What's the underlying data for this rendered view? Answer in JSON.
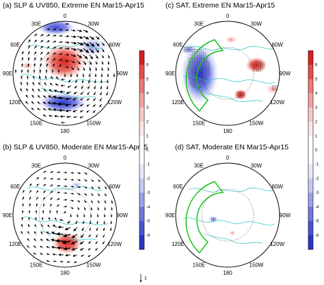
{
  "panels": [
    {
      "key": "a",
      "title": "(a) SLP & UV850, Extreme EN Mar15-Apr15",
      "lon_labels": {
        "top": "0",
        "tl": "30E",
        "tr": "30W",
        "ul": "60E",
        "ur": "60W",
        "l": "90E",
        "r": "90W",
        "ll": "120E",
        "lr": "120W",
        "bl": "150E",
        "br": "150W",
        "bottom": "180"
      }
    },
    {
      "key": "b",
      "title": "(b) SLP & UV850, Moderate EN Mar15-Apr15",
      "lon_labels": {
        "top": "0",
        "tl": "30E",
        "tr": "30W",
        "ul": "60E",
        "ur": "60W",
        "l": "90E",
        "r": "90W",
        "ll": "120E",
        "lr": "120W",
        "bl": "150E",
        "br": "150W",
        "bottom": "180"
      }
    },
    {
      "key": "c",
      "title": "(c) SAT, Extreme EN Mar15-Apr15",
      "lon_labels": {
        "top": "0",
        "tl": "30E",
        "tr": "30W",
        "ul": "60E",
        "ur": "60W",
        "l": "90E",
        "r": "90W",
        "ll": "120E",
        "lr": "120W",
        "bl": "150E",
        "br": "150W",
        "bottom": "180"
      }
    },
    {
      "key": "d",
      "title": "(d) SAT, Moderate EN Mar15-Apr15",
      "lon_labels": {
        "top": "0",
        "tl": "30E",
        "tr": "30W",
        "ul": "60E",
        "ur": "60W",
        "l": "90E",
        "r": "90W",
        "ll": "120E",
        "lr": "120W",
        "bl": "150E",
        "br": "150W",
        "bottom": "180"
      }
    }
  ],
  "colorbar_slp": {
    "ticks": [
      "6",
      "5",
      "4",
      "3",
      "2",
      "1",
      "0",
      "-1",
      "-2",
      "-3",
      "-4",
      "-5",
      "-6"
    ],
    "vector_key": "1"
  },
  "colorbar_sat": {
    "ticks": [
      "6",
      "5",
      "4",
      "3",
      "2",
      "1",
      "0",
      "-1",
      "-2",
      "-3",
      "-4",
      "-5",
      "-6"
    ]
  },
  "colors": {
    "positive": "#e0312b",
    "negative": "#3545d6",
    "coast": "#3cc9c9",
    "box": "#19c419"
  }
}
